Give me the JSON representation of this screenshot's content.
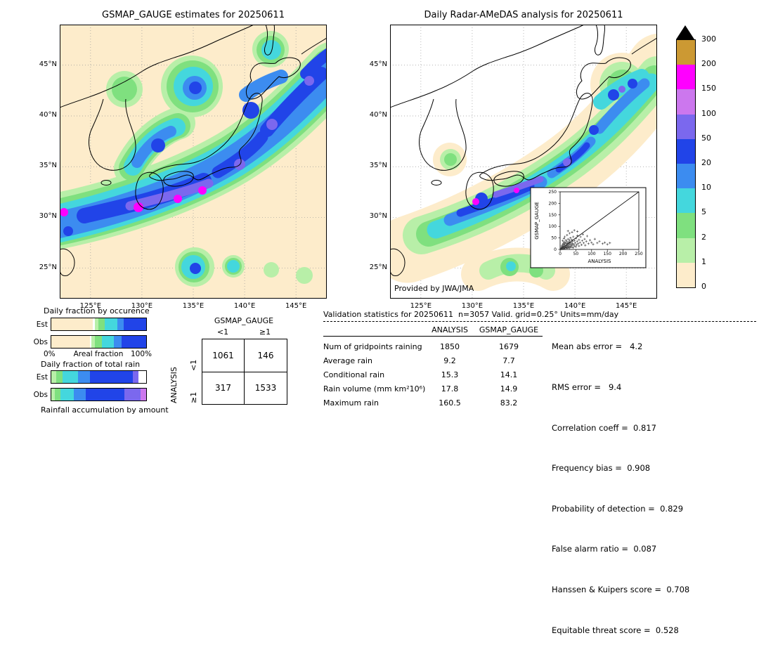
{
  "maps": {
    "xlim": [
      122,
      148
    ],
    "ylim": [
      22,
      49
    ],
    "x_ticks": [
      {
        "lon": 125,
        "label": "125°E"
      },
      {
        "lon": 130,
        "label": "130°E"
      },
      {
        "lon": 135,
        "label": "135°E"
      },
      {
        "lon": 140,
        "label": "140°E"
      },
      {
        "lon": 145,
        "label": "145°E"
      }
    ],
    "y_ticks": [
      {
        "lat": 45,
        "label": "45°N"
      },
      {
        "lat": 40,
        "label": "40°N"
      },
      {
        "lat": 35,
        "label": "35°N"
      },
      {
        "lat": 30,
        "label": "30°N"
      },
      {
        "lat": 25,
        "label": "25°N"
      }
    ],
    "credit": "Provided by JWA/JMA"
  },
  "chart_data": [
    {
      "type": "heatmap",
      "name": "gsmap-gauge-precipitation-map",
      "title": "GSMAP_GAUGE estimates for 20250611",
      "units": "mm/day",
      "xlim": [
        122,
        148
      ],
      "ylim": [
        22,
        49
      ],
      "scale": {
        "levels": [
          "300",
          "200",
          "150",
          "100",
          "50",
          "20",
          "10",
          "5",
          "2",
          "1",
          "0"
        ],
        "colors": [
          "#cc9933",
          "#ff00ff",
          "#cc77ee",
          "#7b68ee",
          "#2144e8",
          "#3c8cf0",
          "#44d7dd",
          "#7fe07f",
          "#b8efa8",
          "#fdeccb"
        ],
        "overflow_color": "#000000"
      }
    },
    {
      "type": "heatmap",
      "name": "radar-amedas-precipitation-map",
      "title": "Daily Radar-AMeDAS analysis for 20250611",
      "units": "mm/day",
      "xlim": [
        122,
        148
      ],
      "ylim": [
        22,
        49
      ]
    },
    {
      "type": "scatter",
      "name": "gauge-vs-analysis-scatter",
      "xlabel": "ANALYSIS",
      "ylabel": "GSMAP_GAUGE",
      "xlim": [
        0,
        250
      ],
      "ylim": [
        0,
        250
      ],
      "ticks": [
        0,
        50,
        100,
        150,
        200,
        250
      ],
      "points": [
        [
          2,
          1
        ],
        [
          3,
          5
        ],
        [
          4,
          2
        ],
        [
          5,
          8
        ],
        [
          5,
          15
        ],
        [
          6,
          3
        ],
        [
          7,
          11
        ],
        [
          8,
          6
        ],
        [
          8,
          20
        ],
        [
          9,
          2
        ],
        [
          10,
          9
        ],
        [
          10,
          26
        ],
        [
          11,
          14
        ],
        [
          12,
          5
        ],
        [
          12,
          33
        ],
        [
          13,
          19
        ],
        [
          14,
          8
        ],
        [
          15,
          24
        ],
        [
          15,
          3
        ],
        [
          16,
          12
        ],
        [
          17,
          30
        ],
        [
          18,
          7
        ],
        [
          18,
          40
        ],
        [
          19,
          16
        ],
        [
          20,
          10
        ],
        [
          20,
          25
        ],
        [
          21,
          36
        ],
        [
          22,
          5
        ],
        [
          23,
          18
        ],
        [
          24,
          28
        ],
        [
          25,
          12
        ],
        [
          25,
          45
        ],
        [
          26,
          8
        ],
        [
          27,
          22
        ],
        [
          28,
          33
        ],
        [
          29,
          15
        ],
        [
          30,
          6
        ],
        [
          30,
          40
        ],
        [
          31,
          25
        ],
        [
          32,
          12
        ],
        [
          33,
          50
        ],
        [
          34,
          20
        ],
        [
          35,
          30
        ],
        [
          36,
          10
        ],
        [
          37,
          42
        ],
        [
          38,
          18
        ],
        [
          39,
          25
        ],
        [
          40,
          35
        ],
        [
          41,
          8
        ],
        [
          42,
          55
        ],
        [
          43,
          22
        ],
        [
          45,
          15
        ],
        [
          46,
          38
        ],
        [
          48,
          28
        ],
        [
          50,
          12
        ],
        [
          50,
          48
        ],
        [
          52,
          20
        ],
        [
          54,
          35
        ],
        [
          55,
          60
        ],
        [
          57,
          25
        ],
        [
          60,
          15
        ],
        [
          60,
          42
        ],
        [
          63,
          30
        ],
        [
          65,
          55
        ],
        [
          68,
          20
        ],
        [
          70,
          38
        ],
        [
          72,
          65
        ],
        [
          75,
          28
        ],
        [
          78,
          45
        ],
        [
          80,
          18
        ],
        [
          83,
          35
        ],
        [
          86,
          58
        ],
        [
          90,
          25
        ],
        [
          95,
          40
        ],
        [
          100,
          30
        ],
        [
          105,
          22
        ],
        [
          110,
          45
        ],
        [
          118,
          28
        ],
        [
          125,
          35
        ],
        [
          135,
          25
        ],
        [
          142,
          30
        ],
        [
          150,
          22
        ],
        [
          158,
          28
        ],
        [
          30,
          70
        ],
        [
          22,
          62
        ],
        [
          15,
          55
        ],
        [
          38,
          75
        ],
        [
          45,
          83
        ],
        [
          12,
          48
        ],
        [
          8,
          38
        ],
        [
          55,
          78
        ],
        [
          25,
          80
        ]
      ]
    },
    {
      "type": "bar",
      "name": "daily-fraction-by-occurrence",
      "title": "Daily fraction by occurence",
      "axis_labels": [
        "0%",
        "Areal fraction",
        "100%"
      ],
      "series": [
        {
          "name": "Est",
          "segments": [
            [
              "#fdeccb",
              44
            ],
            [
              "#ffffff",
              2
            ],
            [
              "#b8efa8",
              4
            ],
            [
              "#7fe07f",
              6
            ],
            [
              "#44d7dd",
              14
            ],
            [
              "#3c8cf0",
              6
            ],
            [
              "#2144e8",
              24
            ]
          ]
        },
        {
          "name": "Obs",
          "segments": [
            [
              "#fdeccb",
              41
            ],
            [
              "#ffffff",
              1
            ],
            [
              "#b8efa8",
              4
            ],
            [
              "#7fe07f",
              7
            ],
            [
              "#44d7dd",
              13
            ],
            [
              "#3c8cf0",
              8
            ],
            [
              "#2144e8",
              26
            ]
          ]
        }
      ]
    },
    {
      "type": "bar",
      "name": "daily-fraction-of-total-rain",
      "title": "Daily fraction of total rain",
      "caption": "Rainfall accumulation by amount",
      "series": [
        {
          "name": "Est",
          "segments": [
            [
              "#b8efa8",
              5
            ],
            [
              "#7fe07f",
              7
            ],
            [
              "#44d7dd",
              16
            ],
            [
              "#3c8cf0",
              13
            ],
            [
              "#2144e8",
              45
            ],
            [
              "#7b68ee",
              6
            ],
            [
              "#ffffff",
              8
            ]
          ]
        },
        {
          "name": "Obs",
          "segments": [
            [
              "#b8efa8",
              4
            ],
            [
              "#7fe07f",
              6
            ],
            [
              "#44d7dd",
              14
            ],
            [
              "#3c8cf0",
              12
            ],
            [
              "#2144e8",
              41
            ],
            [
              "#7b68ee",
              17
            ],
            [
              "#cc77ee",
              6
            ]
          ]
        }
      ]
    },
    {
      "type": "table",
      "name": "contingency-table",
      "col_title": "GSMAP_GAUGE",
      "row_title": "ANALYSIS",
      "col_labels": [
        "<1",
        "≥1"
      ],
      "row_labels": [
        "<1",
        "≥1"
      ],
      "values": [
        [
          1061,
          146
        ],
        [
          317,
          1533
        ]
      ]
    },
    {
      "type": "table",
      "name": "validation-statistics",
      "title": "Validation statistics for 20250611  n=3057 Valid. grid=0.25° Units=mm/day",
      "col_headers": [
        "ANALYSIS",
        "GSMAP_GAUGE"
      ],
      "rows": [
        {
          "label": "Num of gridpoints raining",
          "analysis": "1850",
          "gsmap": "1679"
        },
        {
          "label": "Average rain",
          "analysis": "9.2",
          "gsmap": "7.7"
        },
        {
          "label": "Conditional rain",
          "analysis": "15.3",
          "gsmap": "14.1"
        },
        {
          "label": "Rain volume (mm km²10⁶)",
          "analysis": "17.8",
          "gsmap": "14.9"
        },
        {
          "label": "Maximum rain",
          "analysis": "160.5",
          "gsmap": "83.2"
        }
      ],
      "stats_lines": [
        "Mean abs error =   4.2",
        "RMS error =   9.4",
        "Correlation coeff =  0.817",
        "Frequency bias =  0.908",
        "Probability of detection =  0.829",
        "False alarm ratio =  0.087",
        "Hanssen & Kuipers score =  0.708",
        "Equitable threat score =  0.528"
      ]
    }
  ]
}
